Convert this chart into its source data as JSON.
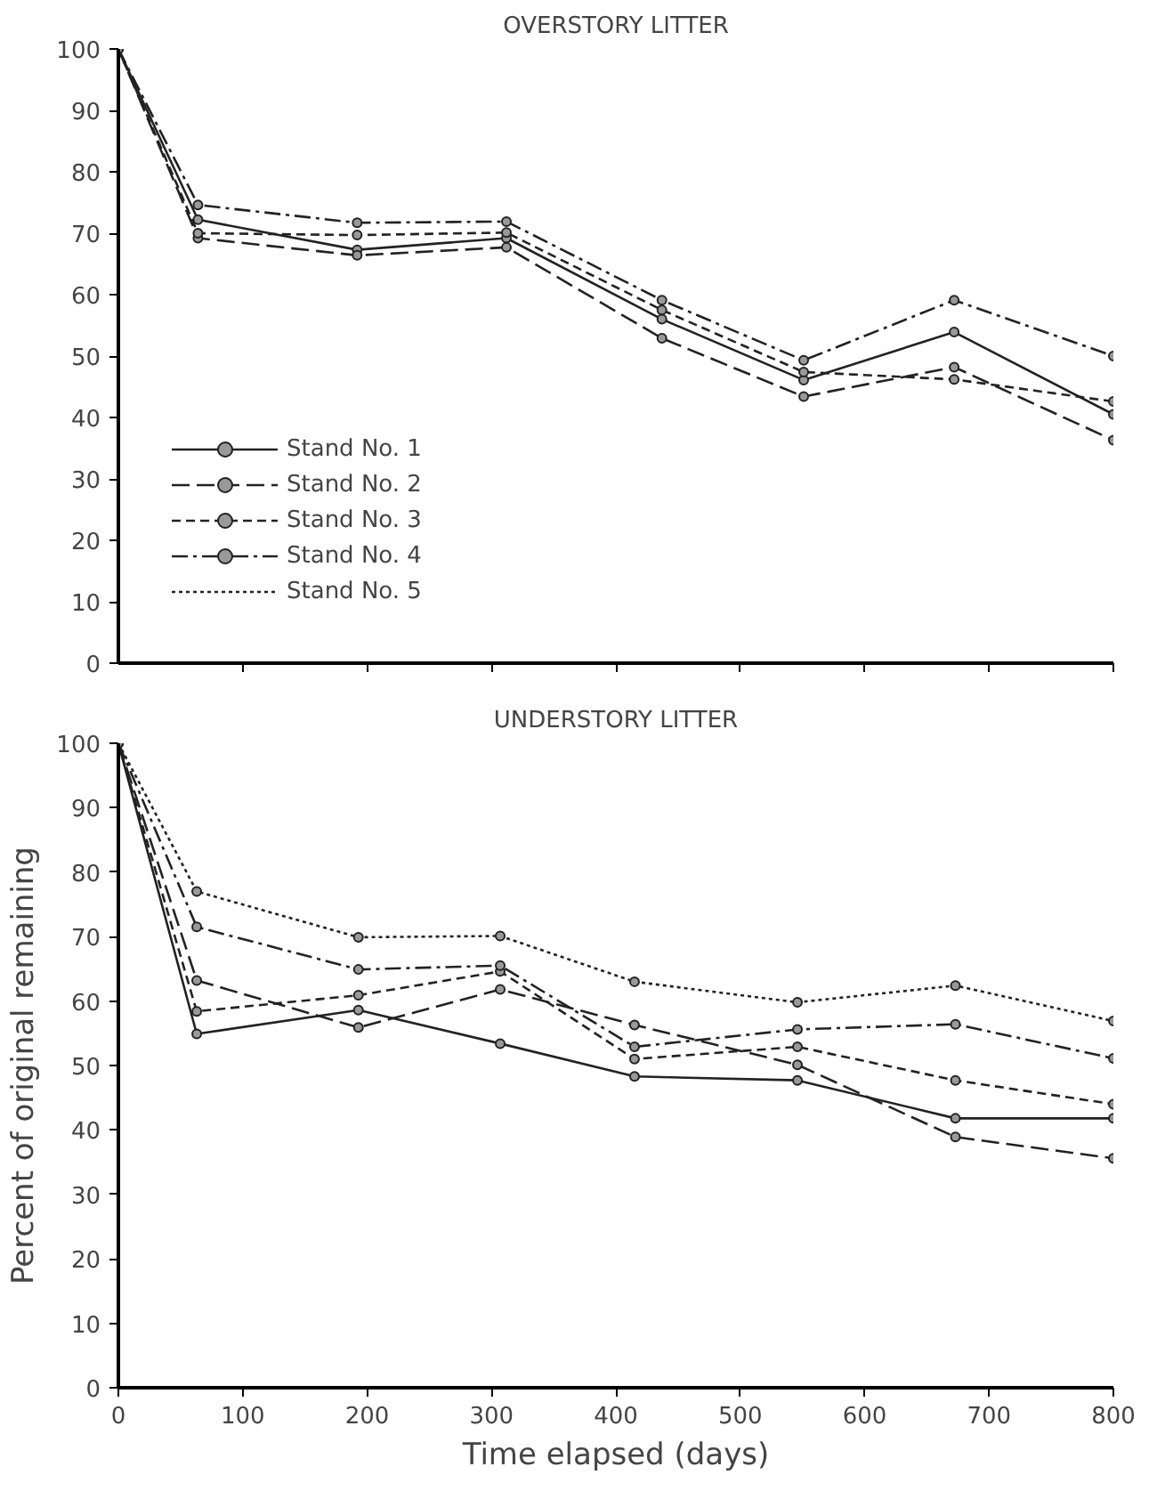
{
  "chart_data": [
    {
      "type": "line",
      "title": "OVERSTORY LITTER",
      "x": [
        0,
        64,
        192,
        312,
        437,
        551,
        672,
        800
      ],
      "xlim": [
        0,
        800
      ],
      "ylim": [
        0,
        100
      ],
      "xticks": [
        {
          "value": 100,
          "label": null
        },
        {
          "value": 200,
          "label": null
        },
        {
          "value": 300,
          "label": null
        },
        {
          "value": 400,
          "label": null
        },
        {
          "value": 500,
          "label": null
        },
        {
          "value": 600,
          "label": null
        },
        {
          "value": 700,
          "label": null
        },
        {
          "value": 800,
          "label": null
        }
      ],
      "yticks": [
        0,
        10,
        20,
        30,
        40,
        50,
        60,
        70,
        80,
        90,
        100
      ],
      "tick_labels": "y",
      "grid": false,
      "marker": "circle",
      "legend": "bottom left",
      "series": [
        {
          "name": "Stand No. 1",
          "color": "#222222",
          "line_style": "solid",
          "values": [
            100,
            72.2,
            67.3,
            69.2,
            56,
            46.1,
            53.9,
            40.5
          ]
        },
        {
          "name": "Stand No. 2",
          "color": "#222222",
          "line_style": "longdash",
          "values": [
            100,
            69.2,
            66.4,
            67.7,
            52.9,
            43.4,
            48.2,
            36.3
          ]
        },
        {
          "name": "Stand No. 3",
          "color": "#222222",
          "line_style": "dashed",
          "values": [
            100,
            70,
            69.7,
            70.1,
            57.5,
            47.4,
            46.2,
            42.6
          ]
        },
        {
          "name": "Stand No. 4",
          "color": "#222222",
          "line_style": "dashdot",
          "values": [
            100,
            74.6,
            71.7,
            71.9,
            59.1,
            49.3,
            59.1,
            50
          ]
        },
        {
          "name": "Stand No. 5",
          "color": "#222222",
          "line_style": "dotted",
          "values": [
            null,
            null,
            null,
            null,
            null,
            null,
            null,
            null
          ]
        }
      ]
    },
    {
      "type": "line",
      "title": "UNDERSTORY LITTER",
      "xlabel": "Time elapsed (days)",
      "ylabel": "Percent of original remaining",
      "x": [
        0,
        63,
        193,
        307,
        415,
        546,
        673,
        800
      ],
      "xlim": [
        0,
        800
      ],
      "ylim": [
        0,
        100
      ],
      "xticks": [
        0,
        100,
        200,
        300,
        400,
        500,
        600,
        700,
        800
      ],
      "yticks": [
        0,
        10,
        20,
        30,
        40,
        50,
        60,
        70,
        80,
        90,
        100
      ],
      "grid": false,
      "marker": "circle",
      "series": [
        {
          "color": "#222222",
          "line_style": "solid",
          "values": [
            100,
            54.9,
            58.6,
            53.4,
            48.3,
            47.7,
            41.8,
            41.8
          ]
        },
        {
          "color": "#222222",
          "line_style": "longdash",
          "values": [
            100,
            63.2,
            55.9,
            61.8,
            56.3,
            50.1,
            38.9,
            35.6
          ]
        },
        {
          "color": "#222222",
          "line_style": "dashed",
          "values": [
            100,
            58.4,
            60.9,
            64.6,
            51,
            52.9,
            47.7,
            44
          ]
        },
        {
          "color": "#222222",
          "line_style": "dashdot",
          "values": [
            100,
            71.5,
            64.9,
            65.5,
            52.9,
            55.6,
            56.4,
            51.1
          ]
        },
        {
          "color": "#222222",
          "line_style": "dotted",
          "values": [
            100,
            77,
            69.9,
            70.1,
            63,
            59.8,
            62.4,
            56.9
          ]
        }
      ]
    }
  ]
}
